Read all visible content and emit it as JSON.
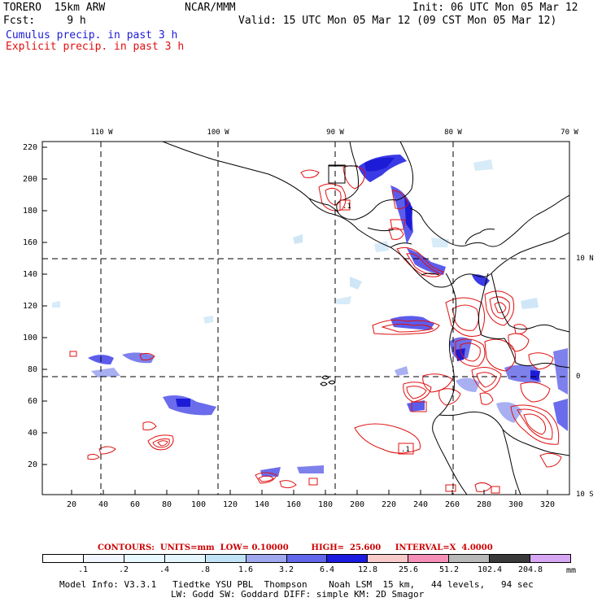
{
  "header": {
    "model": "TORERO  15km ARW",
    "org": "NCAR/MMM",
    "init": "Init: 06 UTC Mon 05 Mar 12",
    "fcst": "Fcst:     9 h",
    "valid": "Valid: 15 UTC Mon 05 Mar 12 (09 CST Mon 05 Mar 12)",
    "legend_cumulus": "Cumulus precip. in past 3 h",
    "legend_explicit": "Explicit precip. in past 3 h"
  },
  "colors": {
    "cumulus": "#1c1cd6",
    "explicit": "#e01010",
    "contours": "#cc0000"
  },
  "map": {
    "lon_labels": [
      "110 W",
      "100 W",
      "90 W",
      "80 W",
      "70 W"
    ],
    "lat_labels": [
      "10 N",
      "0",
      "10 S"
    ],
    "y_ticks": [
      "220",
      "200",
      "180",
      "160",
      "140",
      "120",
      "100",
      "80",
      "60",
      "40",
      "20"
    ],
    "x_ticks": [
      "20",
      "40",
      "60",
      "80",
      "100",
      "120",
      "140",
      "160",
      "180",
      "200",
      "220",
      "240",
      "260",
      "280",
      "300",
      "320"
    ],
    "contour_labels": [
      ".1",
      ".1"
    ]
  },
  "contours_line": {
    "prefix": "CONTOURS:",
    "units": "UNITS=mm",
    "low": "LOW= 0.10000",
    "high": "HIGH=  25.600",
    "interval": "INTERVAL=X  4.0000"
  },
  "colorbar": {
    "colors": [
      "#ffffff",
      "#f2f6ff",
      "#e8f8ff",
      "#e4f6fc",
      "#bfe3f5",
      "#9fa7ee",
      "#6266e8",
      "#1c1ce0",
      "#f8c9c9",
      "#f58fb8",
      "#b8b8b8",
      "#3a3a3a",
      "#d6a6f2"
    ],
    "labels": [
      ".1",
      ".2",
      ".4",
      ".8",
      "1.6",
      "3.2",
      "6.4",
      "12.8",
      "25.6",
      "51.2",
      "102.4",
      "204.8"
    ],
    "unit": "mm"
  },
  "footer": {
    "line1": "Model Info: V3.3.1   Tiedtke YSU PBL  Thompson    Noah LSM  15 km,   44 levels,   94 sec",
    "line2": "LW: Godd SW: Goddard DIFF: simple KM: 2D Smagor"
  }
}
